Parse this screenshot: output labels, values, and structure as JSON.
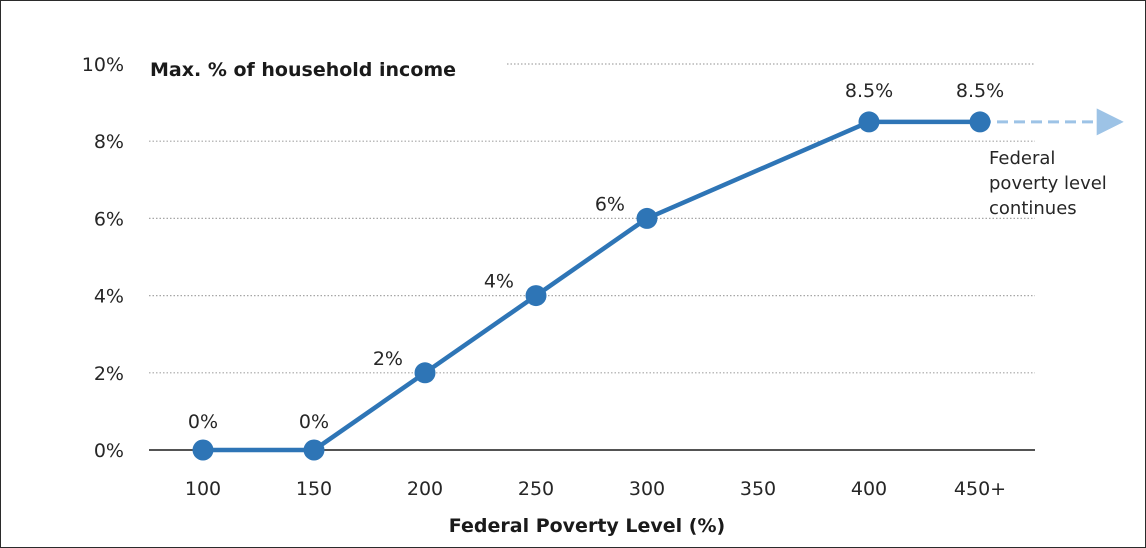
{
  "chart_data": {
    "type": "line",
    "title": "",
    "xlabel": "Federal Poverty Level (%)",
    "ylabel": "Max. % of household income",
    "categories": [
      "100",
      "150",
      "200",
      "250",
      "300",
      "350",
      "400",
      "450+"
    ],
    "x_values": [
      100,
      150,
      200,
      250,
      300,
      350,
      400,
      450
    ],
    "yticks": [
      "0%",
      "2%",
      "4%",
      "6%",
      "8%",
      "10%"
    ],
    "ylim": [
      0,
      10
    ],
    "grid": true,
    "series": [
      {
        "color": "#2e75b6",
        "points": [
          {
            "x": 100,
            "y": 0,
            "label": "0%"
          },
          {
            "x": 150,
            "y": 0,
            "label": "0%"
          },
          {
            "x": 200,
            "y": 2,
            "label": "2%"
          },
          {
            "x": 250,
            "y": 4,
            "label": "4%"
          },
          {
            "x": 300,
            "y": 6,
            "label": "6%"
          },
          {
            "x": 400,
            "y": 8.5,
            "label": "8.5%"
          },
          {
            "x": 450,
            "y": 8.5,
            "label": "8.5%"
          }
        ]
      }
    ],
    "continuation": {
      "style": "dashed arrow",
      "color": "#9dc3e6",
      "annotation": [
        "Federal",
        "poverty level",
        "continues"
      ]
    }
  }
}
